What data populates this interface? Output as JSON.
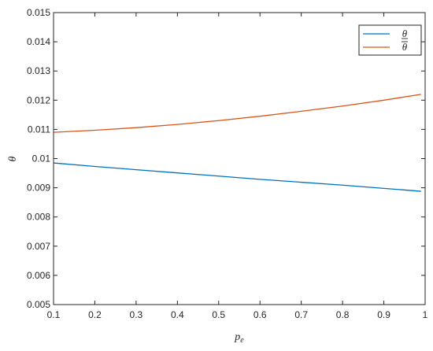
{
  "chart_data": {
    "type": "line",
    "title": "",
    "xlabel": "p",
    "xlabel_sub": "e",
    "ylabel": "θ",
    "xlim": [
      0.1,
      1.0
    ],
    "ylim": [
      0.005,
      0.015
    ],
    "xticks": [
      "0.1",
      "0.2",
      "0.3",
      "0.4",
      "0.5",
      "0.6",
      "0.7",
      "0.8",
      "0.9",
      "1"
    ],
    "yticks": [
      "0.005",
      "0.006",
      "0.007",
      "0.008",
      "0.009",
      "0.01",
      "0.011",
      "0.012",
      "0.013",
      "0.014",
      "0.015"
    ],
    "grid": false,
    "legend_position": "top-right",
    "series": [
      {
        "name": "θ",
        "name_decoration": "underline",
        "color": "#0072BD",
        "x": [
          0.1,
          0.2,
          0.3,
          0.4,
          0.5,
          0.6,
          0.7,
          0.8,
          0.9,
          0.99
        ],
        "y": [
          0.00985,
          0.00973,
          0.00962,
          0.00951,
          0.0094,
          0.00929,
          0.00919,
          0.00909,
          0.00898,
          0.00888
        ]
      },
      {
        "name": "θ",
        "name_decoration": "overline",
        "color": "#D95319",
        "x": [
          0.1,
          0.2,
          0.3,
          0.4,
          0.5,
          0.6,
          0.7,
          0.8,
          0.9,
          0.99
        ],
        "y": [
          0.0109,
          0.01097,
          0.01106,
          0.01117,
          0.0113,
          0.01145,
          0.01162,
          0.0118,
          0.012,
          0.0122
        ]
      }
    ]
  }
}
